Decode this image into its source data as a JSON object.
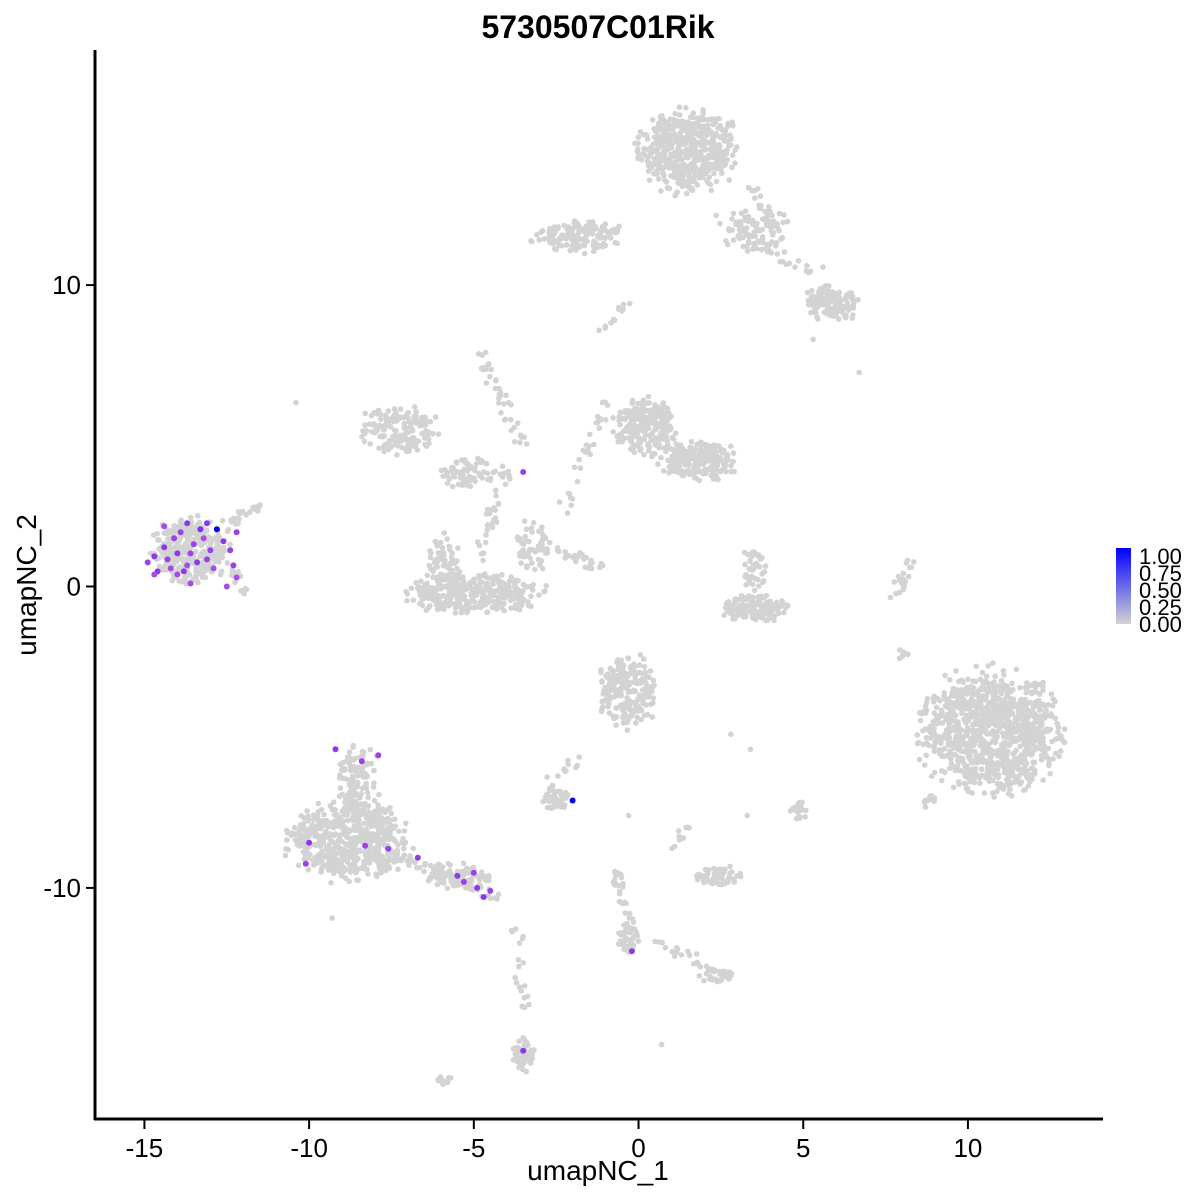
{
  "chart_data": {
    "type": "scatter",
    "title": "5730507C01Rik",
    "xlabel": "umapNC_1",
    "ylabel": "umapNC_2",
    "xlim": [
      -16.5,
      14.1
    ],
    "ylim": [
      -17.7,
      17.8
    ],
    "x_ticks": [
      -15,
      -10,
      -5,
      0,
      5,
      10
    ],
    "x_tick_labels": [
      "-15",
      "-10",
      "-5",
      "0",
      "5",
      "10"
    ],
    "y_ticks": [
      -10,
      0,
      10
    ],
    "y_tick_labels": [
      "-10",
      "0",
      "10"
    ],
    "grid": false,
    "legend": {
      "placement": "right",
      "labels": [
        "1.00",
        "0.75",
        "0.50",
        "0.25",
        "0.00"
      ],
      "range": [
        0,
        1
      ]
    },
    "colors": {
      "low": "#d3d3d3",
      "high": "#0000ff",
      "point_stroke": "none"
    },
    "clusters": [
      {
        "cx": 1.5,
        "cy": 14.5,
        "rx": 1.7,
        "ry": 1.6,
        "n": 520
      },
      {
        "cx": 3.5,
        "cy": 11.8,
        "rx": 1.2,
        "ry": 0.9,
        "n": 90
      },
      {
        "cx": 5.9,
        "cy": 9.4,
        "rx": 1.0,
        "ry": 0.7,
        "n": 140
      },
      {
        "cx": -1.8,
        "cy": 11.6,
        "rx": 1.6,
        "ry": 0.6,
        "n": 160
      },
      {
        "cx": -7.2,
        "cy": 5.2,
        "rx": 1.4,
        "ry": 0.9,
        "n": 160
      },
      {
        "cx": -5.2,
        "cy": 3.8,
        "rx": 1.0,
        "ry": 0.6,
        "n": 70
      },
      {
        "cx": 0.2,
        "cy": 5.3,
        "rx": 1.1,
        "ry": 1.1,
        "n": 230
      },
      {
        "cx": 1.8,
        "cy": 4.2,
        "rx": 1.4,
        "ry": 0.8,
        "n": 200
      },
      {
        "cx": -5.0,
        "cy": -0.2,
        "rx": 2.4,
        "ry": 0.8,
        "n": 330
      },
      {
        "cx": -5.9,
        "cy": 0.9,
        "rx": 0.6,
        "ry": 0.9,
        "n": 60
      },
      {
        "cx": -3.2,
        "cy": 1.3,
        "rx": 0.6,
        "ry": 1.1,
        "n": 60
      },
      {
        "cx": -13.6,
        "cy": 1.2,
        "rx": 1.4,
        "ry": 1.2,
        "n": 320
      },
      {
        "cx": 3.5,
        "cy": -0.7,
        "rx": 1.2,
        "ry": 0.5,
        "n": 140
      },
      {
        "cx": 3.5,
        "cy": 0.6,
        "rx": 0.4,
        "ry": 0.8,
        "n": 40
      },
      {
        "cx": 10.7,
        "cy": -4.8,
        "rx": 2.4,
        "ry": 2.3,
        "n": 1000
      },
      {
        "cx": -0.3,
        "cy": -3.5,
        "rx": 1.1,
        "ry": 1.4,
        "n": 220
      },
      {
        "cx": -8.8,
        "cy": -8.4,
        "rx": 2.1,
        "ry": 1.5,
        "n": 560
      },
      {
        "cx": -8.5,
        "cy": -6.3,
        "rx": 0.8,
        "ry": 1.2,
        "n": 110
      },
      {
        "cx": -5.5,
        "cy": -9.6,
        "rx": 1.2,
        "ry": 0.5,
        "n": 90
      },
      {
        "cx": -2.5,
        "cy": -7.1,
        "rx": 0.5,
        "ry": 0.4,
        "n": 45
      },
      {
        "cx": 2.4,
        "cy": -9.6,
        "rx": 0.8,
        "ry": 0.4,
        "n": 65
      },
      {
        "cx": 2.4,
        "cy": -12.9,
        "rx": 0.6,
        "ry": 0.3,
        "n": 35
      },
      {
        "cx": -0.3,
        "cy": -11.7,
        "rx": 0.4,
        "ry": 0.6,
        "n": 35
      },
      {
        "cx": -3.5,
        "cy": -15.5,
        "rx": 0.4,
        "ry": 0.7,
        "n": 55
      },
      {
        "cx": 4.9,
        "cy": -7.4,
        "rx": 0.3,
        "ry": 0.4,
        "n": 20
      },
      {
        "cx": -5.9,
        "cy": -16.4,
        "rx": 0.3,
        "ry": 0.2,
        "n": 12
      },
      {
        "cx": 8.0,
        "cy": -2.2,
        "rx": 0.3,
        "ry": 0.2,
        "n": 8
      },
      {
        "cx": 8.7,
        "cy": -7.1,
        "rx": 0.35,
        "ry": 0.25,
        "n": 12
      }
    ],
    "streaks": [
      {
        "x1": -4.8,
        "y1": 7.7,
        "x2": -3.5,
        "y2": 4.7,
        "n": 40
      },
      {
        "x1": -4.0,
        "y1": 4.0,
        "x2": -4.8,
        "y2": 1.0,
        "n": 35
      },
      {
        "x1": -0.9,
        "y1": 6.3,
        "x2": -2.3,
        "y2": 2.5,
        "n": 30
      },
      {
        "x1": -2.6,
        "y1": 1.3,
        "x2": -1.1,
        "y2": 0.6,
        "n": 25
      },
      {
        "x1": 8.3,
        "y1": 0.9,
        "x2": 7.8,
        "y2": -0.3,
        "n": 20
      },
      {
        "x1": -11.4,
        "y1": 2.8,
        "x2": -12.7,
        "y2": 1.9,
        "n": 25
      },
      {
        "x1": -12.3,
        "y1": 0.7,
        "x2": -11.9,
        "y2": -0.2,
        "n": 12
      },
      {
        "x1": -7.5,
        "y1": -8.8,
        "x2": -4.2,
        "y2": -10.4,
        "n": 60
      },
      {
        "x1": -0.7,
        "y1": -9.3,
        "x2": -0.2,
        "y2": -11.6,
        "n": 30
      },
      {
        "x1": 0.4,
        "y1": -11.7,
        "x2": 2.2,
        "y2": -12.6,
        "n": 20
      },
      {
        "x1": -3.7,
        "y1": -11.3,
        "x2": -3.5,
        "y2": -14.0,
        "n": 20
      },
      {
        "x1": 0.9,
        "y1": -9.0,
        "x2": 1.5,
        "y2": -7.9,
        "n": 10
      },
      {
        "x1": -2.7,
        "y1": -6.5,
        "x2": -1.7,
        "y2": -5.7,
        "n": 10
      },
      {
        "x1": -1.0,
        "y1": 8.5,
        "x2": -0.4,
        "y2": 9.4,
        "n": 10
      },
      {
        "x1": 2.3,
        "y1": 12.2,
        "x2": 5.2,
        "y2": 10.5,
        "n": 30
      },
      {
        "x1": 3.4,
        "y1": 13.4,
        "x2": 4.2,
        "y2": 11.6,
        "n": 20
      }
    ],
    "sparse_points": [
      [
        -10.4,
        6.1
      ],
      [
        -11.9,
        -0.1
      ],
      [
        3.3,
        -7.6
      ],
      [
        -2.7,
        -6.7
      ],
      [
        -1.9,
        -6.0
      ],
      [
        -0.3,
        -7.6
      ],
      [
        6.7,
        7.1
      ],
      [
        5.3,
        8.2
      ],
      [
        5.6,
        10.6
      ],
      [
        -1.2,
        8.5
      ],
      [
        -0.6,
        9.2
      ],
      [
        2.8,
        -4.9
      ],
      [
        -5.7,
        -16.3
      ],
      [
        3.4,
        -5.4
      ],
      [
        -2.4,
        2.8
      ],
      [
        0.7,
        -15.2
      ],
      [
        -3.8,
        -15.7
      ],
      [
        -9.3,
        -11.0
      ],
      [
        -3.6,
        1.1
      ],
      [
        4.8,
        -7.7
      ]
    ],
    "expressing_points": [
      [
        -12.8,
        1.9,
        1.0
      ],
      [
        -13.3,
        1.9,
        0.65
      ],
      [
        -13.7,
        2.1,
        0.6
      ],
      [
        -13.1,
        2.1,
        0.6
      ],
      [
        -14.1,
        1.6,
        0.55
      ],
      [
        -14.4,
        1.3,
        0.6
      ],
      [
        -14.7,
        1.0,
        0.6
      ],
      [
        -14.9,
        0.8,
        0.55
      ],
      [
        -14.6,
        0.5,
        0.6
      ],
      [
        -14.0,
        1.1,
        0.6
      ],
      [
        -13.5,
        1.4,
        0.55
      ],
      [
        -13.8,
        0.5,
        0.6
      ],
      [
        -14.2,
        0.6,
        0.5
      ],
      [
        -13.4,
        0.8,
        0.6
      ],
      [
        -13.0,
        1.2,
        0.55
      ],
      [
        -12.6,
        1.5,
        0.6
      ],
      [
        -12.2,
        1.8,
        0.55
      ],
      [
        -14.4,
        2.0,
        0.5
      ],
      [
        -13.6,
        1.1,
        0.55
      ],
      [
        -12.9,
        0.6,
        0.5
      ],
      [
        -12.3,
        0.7,
        0.55
      ],
      [
        -12.5,
        0.0,
        0.5
      ],
      [
        -13.6,
        0.1,
        0.5
      ],
      [
        -14.7,
        0.4,
        0.5
      ],
      [
        -13.9,
        1.8,
        0.55
      ],
      [
        -13.2,
        1.6,
        0.5
      ],
      [
        -14.3,
        0.9,
        0.55
      ],
      [
        -12.2,
        0.3,
        0.5
      ],
      [
        -13.7,
        0.7,
        0.5
      ],
      [
        -13.1,
        0.9,
        0.55
      ],
      [
        -12.4,
        1.2,
        0.55
      ],
      [
        -14.0,
        0.4,
        0.5
      ],
      [
        -9.2,
        -5.4,
        0.6
      ],
      [
        -8.4,
        -5.8,
        0.55
      ],
      [
        -7.9,
        -5.6,
        0.55
      ],
      [
        -10.0,
        -8.5,
        0.6
      ],
      [
        -10.1,
        -9.2,
        0.55
      ],
      [
        -8.3,
        -8.6,
        0.55
      ],
      [
        -7.6,
        -8.7,
        0.55
      ],
      [
        -6.7,
        -9.0,
        0.6
      ],
      [
        -5.5,
        -9.6,
        0.6
      ],
      [
        -5.0,
        -9.5,
        0.55
      ],
      [
        -5.3,
        -9.8,
        0.55
      ],
      [
        -4.9,
        -10.0,
        0.6
      ],
      [
        -4.5,
        -10.1,
        0.55
      ],
      [
        -4.7,
        -10.3,
        0.6
      ],
      [
        -3.5,
        3.8,
        0.55
      ],
      [
        -2.0,
        -7.1,
        1.0
      ],
      [
        -0.2,
        -12.1,
        0.6
      ],
      [
        -3.5,
        -15.4,
        0.6
      ]
    ]
  }
}
